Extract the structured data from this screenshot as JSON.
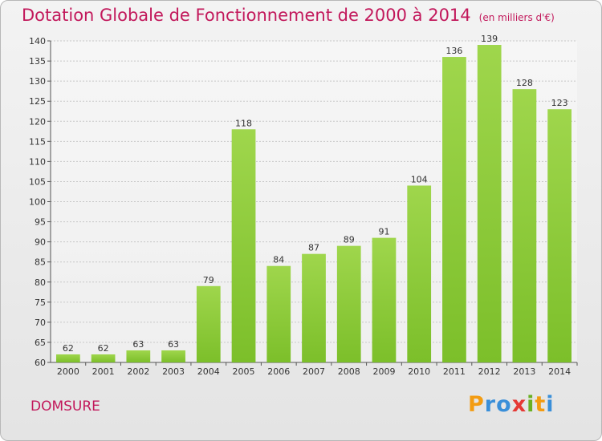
{
  "chart_data": {
    "type": "bar",
    "title": "Dotation Globale de Fonctionnement de 2000 à 2014",
    "subtitle": "(en milliers d'€)",
    "categories": [
      "2000",
      "2001",
      "2002",
      "2003",
      "2004",
      "2005",
      "2006",
      "2007",
      "2008",
      "2009",
      "2010",
      "2011",
      "2012",
      "2013",
      "2014"
    ],
    "values": [
      62,
      62,
      63,
      63,
      79,
      118,
      84,
      87,
      89,
      91,
      104,
      136,
      139,
      128,
      123
    ],
    "ylim": [
      60,
      140
    ],
    "ytick_step": 5,
    "grid": true,
    "bar_color": "#7cbf2a",
    "bar_color_light": "#9fd64c"
  },
  "commune": "DOMSURE",
  "logo": {
    "letters": [
      "P",
      "r",
      "o",
      "x",
      "i",
      "t",
      "i"
    ],
    "colors": [
      "#f39c12",
      "#3a8fd9",
      "#3a8fd9",
      "#e53935",
      "#6ab023",
      "#f39c12",
      "#3a8fd9"
    ]
  }
}
